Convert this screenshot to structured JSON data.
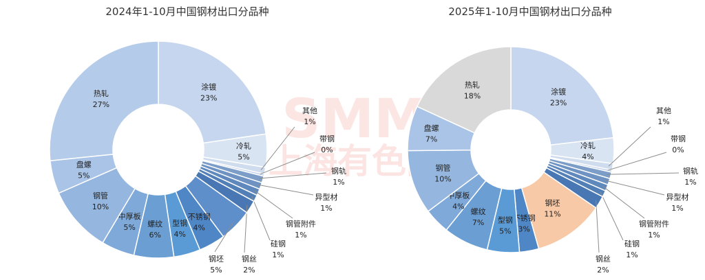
{
  "watermark": {
    "brand": "SMM",
    "text": "上海有色网"
  },
  "chart_data": [
    {
      "type": "pie",
      "donut": true,
      "title": "2024年1-10月中国钢材出口分品种",
      "unit": "%",
      "slices": [
        {
          "name": "涂镀",
          "value": 23,
          "label": "23%",
          "color": "#c5d6ee"
        },
        {
          "name": "冷轧",
          "value": 5,
          "label": "5%",
          "color": "#d9e4f3"
        },
        {
          "name": "其他",
          "value": 1,
          "label": "1%",
          "color": "#cfdcee"
        },
        {
          "name": "带钢",
          "value": 0,
          "label": "0%",
          "color": "#c3d3ea"
        },
        {
          "name": "钢轨",
          "value": 1,
          "label": "1%",
          "color": "#7b9dc8"
        },
        {
          "name": "异型材",
          "value": 1,
          "label": "1%",
          "color": "#6e93c2"
        },
        {
          "name": "钢管附件",
          "value": 1,
          "label": "1%",
          "color": "#5f88bd"
        },
        {
          "name": "硅钢",
          "value": 1,
          "label": "1%",
          "color": "#537fb7"
        },
        {
          "name": "钢丝",
          "value": 2,
          "label": "2%",
          "color": "#4977b3"
        },
        {
          "name": "钢坯",
          "value": 5,
          "label": "5%",
          "color": "#5f8fca"
        },
        {
          "name": "不锈钢",
          "value": 4,
          "label": "4%",
          "color": "#4f86c6"
        },
        {
          "name": "型钢",
          "value": 4,
          "label": "4%",
          "color": "#5b9bd5"
        },
        {
          "name": "螺纹",
          "value": 6,
          "label": "6%",
          "color": "#6b9ed3"
        },
        {
          "name": "中厚板",
          "value": 5,
          "label": "5%",
          "color": "#7ea9d9"
        },
        {
          "name": "钢管",
          "value": 10,
          "label": "10%",
          "color": "#95b7df"
        },
        {
          "name": "盘螺",
          "value": 5,
          "label": "5%",
          "color": "#a9c4e6"
        },
        {
          "name": "热轧",
          "value": 27,
          "label": "27%",
          "color": "#b4cbe9"
        }
      ]
    },
    {
      "type": "pie",
      "donut": true,
      "title": "2025年1-10月中国钢材出口分品种",
      "unit": "%",
      "slices": [
        {
          "name": "涂镀",
          "value": 23,
          "label": "23%",
          "color": "#c5d6ee"
        },
        {
          "name": "冷轧",
          "value": 4,
          "label": "4%",
          "color": "#d9e4f3"
        },
        {
          "name": "其他",
          "value": 1,
          "label": "1%",
          "color": "#cfdcee"
        },
        {
          "name": "带钢",
          "value": 0,
          "label": "0%",
          "color": "#c3d3ea"
        },
        {
          "name": "钢轨",
          "value": 1,
          "label": "1%",
          "color": "#7b9dc8"
        },
        {
          "name": "异型材",
          "value": 1,
          "label": "1%",
          "color": "#6e93c2"
        },
        {
          "name": "钢管附件",
          "value": 1,
          "label": "1%",
          "color": "#5f88bd"
        },
        {
          "name": "硅钢",
          "value": 1,
          "label": "1%",
          "color": "#537fb7"
        },
        {
          "name": "钢丝",
          "value": 2,
          "label": "2%",
          "color": "#4977b3"
        },
        {
          "name": "钢坯",
          "value": 11,
          "label": "11%",
          "color": "#f8c9a6"
        },
        {
          "name": "不锈钢",
          "value": 3,
          "label": "3%",
          "color": "#4f86c6"
        },
        {
          "name": "型钢",
          "value": 5,
          "label": "5%",
          "color": "#5b9bd5"
        },
        {
          "name": "螺纹",
          "value": 7,
          "label": "7%",
          "color": "#6b9ed3"
        },
        {
          "name": "中厚板",
          "value": 4,
          "label": "4%",
          "color": "#7ea9d9"
        },
        {
          "name": "钢管",
          "value": 10,
          "label": "10%",
          "color": "#95b7df"
        },
        {
          "name": "盘螺",
          "value": 7,
          "label": "7%",
          "color": "#a9c4e6"
        },
        {
          "name": "热轧",
          "value": 18,
          "label": "18%",
          "color": "#d9d9d9"
        }
      ]
    }
  ]
}
